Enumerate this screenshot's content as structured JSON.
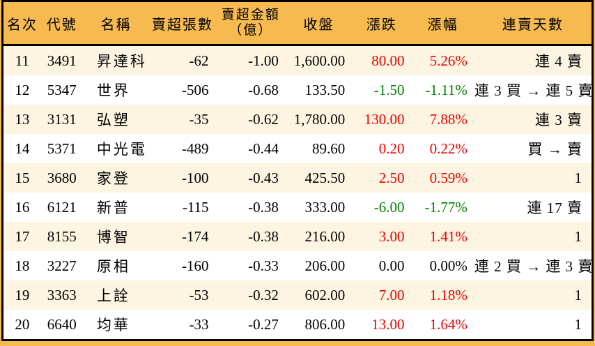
{
  "chart_data": {
    "type": "table",
    "title": "",
    "columns": [
      {
        "label": "名次"
      },
      {
        "label": "代號"
      },
      {
        "label": "名稱"
      },
      {
        "label": "賣超張數"
      },
      {
        "label": "賣超金額",
        "label2": "（億）"
      },
      {
        "label": "收盤"
      },
      {
        "label": "漲跌"
      },
      {
        "label": "漲幅"
      },
      {
        "label": "連賣天數"
      }
    ],
    "rows": [
      {
        "rank": "11",
        "code": "3491",
        "name": "昇達科",
        "volume": "-62",
        "amount": "-1.00",
        "close": "1,600.00",
        "change": "80.00",
        "change_pct": "5.26%",
        "direction": "up",
        "streak": "連 4 賣"
      },
      {
        "rank": "12",
        "code": "5347",
        "name": "世界",
        "volume": "-506",
        "amount": "-0.68",
        "close": "133.50",
        "change": "-1.50",
        "change_pct": "-1.11%",
        "direction": "down",
        "streak": "連 3 買 → 連 5 賣"
      },
      {
        "rank": "13",
        "code": "3131",
        "name": "弘塑",
        "volume": "-35",
        "amount": "-0.62",
        "close": "1,780.00",
        "change": "130.00",
        "change_pct": "7.88%",
        "direction": "up",
        "streak": "連 3 賣"
      },
      {
        "rank": "14",
        "code": "5371",
        "name": "中光電",
        "volume": "-489",
        "amount": "-0.44",
        "close": "89.60",
        "change": "0.20",
        "change_pct": "0.22%",
        "direction": "up",
        "streak": "買 → 賣"
      },
      {
        "rank": "15",
        "code": "3680",
        "name": "家登",
        "volume": "-100",
        "amount": "-0.43",
        "close": "425.50",
        "change": "2.50",
        "change_pct": "0.59%",
        "direction": "up",
        "streak": "1"
      },
      {
        "rank": "16",
        "code": "6121",
        "name": "新普",
        "volume": "-115",
        "amount": "-0.38",
        "close": "333.00",
        "change": "-6.00",
        "change_pct": "-1.77%",
        "direction": "down",
        "streak": "連 17 賣"
      },
      {
        "rank": "17",
        "code": "8155",
        "name": "博智",
        "volume": "-174",
        "amount": "-0.38",
        "close": "216.00",
        "change": "3.00",
        "change_pct": "1.41%",
        "direction": "up",
        "streak": "1"
      },
      {
        "rank": "18",
        "code": "3227",
        "name": "原相",
        "volume": "-160",
        "amount": "-0.33",
        "close": "206.00",
        "change": "0.00",
        "change_pct": "0.00%",
        "direction": "flat",
        "streak": "連 2 買 → 連 3 賣"
      },
      {
        "rank": "19",
        "code": "3363",
        "name": "上詮",
        "volume": "-53",
        "amount": "-0.32",
        "close": "602.00",
        "change": "7.00",
        "change_pct": "1.18%",
        "direction": "up",
        "streak": "1"
      },
      {
        "rank": "20",
        "code": "6640",
        "name": "均華",
        "volume": "-33",
        "amount": "-0.27",
        "close": "806.00",
        "change": "13.00",
        "change_pct": "1.64%",
        "direction": "up",
        "streak": "1"
      }
    ]
  },
  "colors": {
    "header_bg": "#F6BA50",
    "page_bg": "#F6BA50",
    "row_alt_bg": "#FDF5E1",
    "row_bg": "#FFFFFF",
    "up_text": "#EE0000",
    "down_text": "#008000",
    "flat_text": "#000000",
    "border": "#000000"
  }
}
